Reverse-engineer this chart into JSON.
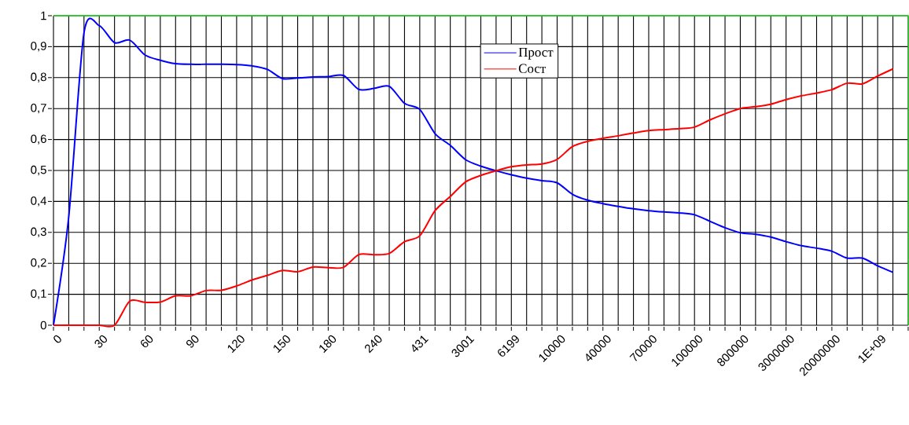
{
  "chart_data": {
    "type": "line",
    "categories": [
      "0",
      null,
      null,
      "30",
      null,
      null,
      "60",
      null,
      null,
      "90",
      null,
      null,
      "120",
      null,
      null,
      "150",
      null,
      null,
      "180",
      null,
      null,
      "240",
      null,
      null,
      "431",
      null,
      null,
      "3001",
      null,
      null,
      "6199",
      null,
      null,
      "10000",
      null,
      null,
      "40000",
      null,
      null,
      "70000",
      null,
      null,
      "100000",
      null,
      null,
      "800000",
      null,
      null,
      "3000000",
      null,
      null,
      "20000000",
      null,
      null,
      "1E+09",
      null,
      null
    ],
    "series": [
      {
        "name": "Прост",
        "color": "#0000ff",
        "values": [
          0,
          0.35,
          0.945,
          0.968,
          0.913,
          0.921,
          0.873,
          0.856,
          0.845,
          0.843,
          0.843,
          0.843,
          0.842,
          0.838,
          0.827,
          0.797,
          0.799,
          0.802,
          0.803,
          0.807,
          0.762,
          0.765,
          0.772,
          0.717,
          0.697,
          0.619,
          0.581,
          0.535,
          0.514,
          0.499,
          0.486,
          0.475,
          0.467,
          0.46,
          0.423,
          0.404,
          0.393,
          0.384,
          0.376,
          0.37,
          0.366,
          0.363,
          0.357,
          0.336,
          0.315,
          0.299,
          0.294,
          0.285,
          0.27,
          0.257,
          0.249,
          0.239,
          0.217,
          0.217,
          0.192,
          0.171,
          null
        ]
      },
      {
        "name": "Сост",
        "color": "#ff0000",
        "values": [
          0,
          0,
          0,
          0,
          0,
          0.078,
          0.074,
          0.075,
          0.095,
          0.095,
          0.112,
          0.113,
          0.127,
          0.146,
          0.161,
          0.177,
          0.173,
          0.188,
          0.186,
          0.187,
          0.228,
          0.228,
          0.232,
          0.27,
          0.289,
          0.37,
          0.416,
          0.463,
          0.484,
          0.499,
          0.512,
          0.518,
          0.521,
          0.536,
          0.577,
          0.594,
          0.604,
          0.612,
          0.621,
          0.629,
          0.632,
          0.635,
          0.64,
          0.663,
          0.683,
          0.7,
          0.706,
          0.714,
          0.729,
          0.741,
          0.75,
          0.761,
          0.782,
          0.78,
          0.805,
          0.828,
          null
        ]
      }
    ],
    "ylim": [
      0,
      1
    ],
    "yticks": [
      0,
      {
        "value": 0.1,
        "label": "0,1"
      },
      {
        "value": 0.2,
        "label": "0,2"
      },
      {
        "value": 0.3,
        "label": "0,3"
      },
      {
        "value": 0.4,
        "label": "0,4"
      },
      {
        "value": 0.5,
        "label": "0,5"
      },
      {
        "value": 0.6,
        "label": "0,6"
      },
      {
        "value": 0.7,
        "label": "0,7"
      },
      {
        "value": 0.8,
        "label": "0,8"
      },
      {
        "value": 0.9,
        "label": "0,9"
      },
      1
    ],
    "grid": true,
    "legend": "top",
    "marker": "none",
    "line_style": "solid"
  }
}
